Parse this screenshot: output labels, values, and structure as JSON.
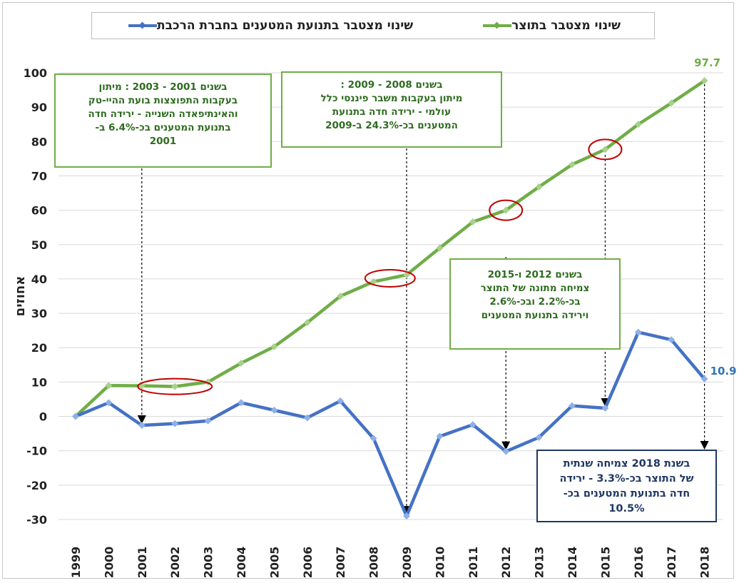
{
  "chart_data": {
    "type": "line",
    "title": "",
    "xlabel": "",
    "ylabel": "אחוזים",
    "ylim": [
      -30,
      100
    ],
    "yticks": [
      -30,
      -20,
      -10,
      0,
      10,
      20,
      30,
      40,
      50,
      60,
      70,
      80,
      90,
      100
    ],
    "grid": true,
    "legend_position": "top",
    "x": [
      "1999",
      "2000",
      "2001",
      "2002",
      "2003",
      "2004",
      "2005",
      "2006",
      "2007",
      "2008",
      "2009",
      "2010",
      "2011",
      "2012",
      "2013",
      "2014",
      "2015",
      "2016",
      "2017",
      "2018"
    ],
    "series": [
      {
        "name": "שינוי מצטבר בתוצר",
        "color": "#70ad47",
        "values": [
          0,
          9,
          8.9,
          8.7,
          10,
          15.5,
          20.3,
          27.3,
          35,
          39.2,
          41.2,
          49,
          56.6,
          60,
          66.8,
          73.3,
          77.7,
          85,
          91.2,
          97.7
        ],
        "end_label": "97.7"
      },
      {
        "name": "שינוי מצטבר בתנועת המטענים בחברת הרכבת",
        "color": "#4472c4",
        "values": [
          0,
          4,
          -2.6,
          -2.1,
          -1.3,
          4,
          1.8,
          -0.4,
          4.5,
          -6.4,
          -29,
          -5.8,
          -2.4,
          -10.2,
          -6.1,
          3.1,
          2.4,
          24.5,
          22.3,
          10.9
        ],
        "end_label": "10.9"
      }
    ],
    "highlight_circles": [
      "2002",
      "2008.5",
      "2012",
      "2015"
    ],
    "annotations": [
      {
        "style": "green",
        "text": "בשנים 2001 - 2003 : מיתון\nבעקבות התפוצצות בועת ההיי-טק\nוהאינתיפאדה השנייה - ירידה חדה\nבתנועת המטענים בכ-6.4% ב-\n2001",
        "arrow_to": {
          "x": "2001",
          "y": -2.6
        }
      },
      {
        "style": "green",
        "text": "בשנים 2008 - 2009 :\nמיתון בעקבות משבר פיננסי כלל\nעולמי - ירידה חדה בתנועת\nהמטענים בכ-24.3% ב-2009",
        "arrow_to": {
          "x": "2009",
          "y": -29
        }
      },
      {
        "style": "green",
        "text": "בשנים 2012 ו-2015\nצמיחה מתונה של התוצר\nבכ-2.2% ובכ-2.6%\nוירידה בתנועת המטענים",
        "arrow_to": [
          {
            "x": "2012",
            "y": -10.2
          },
          {
            "x": "2015",
            "y": 2.4
          }
        ]
      },
      {
        "style": "blue",
        "text": "בשנת 2018 צמיחה שנתית\nשל התוצר בכ-3.3% - ירידה\nחדה בתנועת המטענים בכ-\n10.5%",
        "arrow_to": {
          "x": "2018",
          "y": 10.9
        }
      }
    ]
  }
}
